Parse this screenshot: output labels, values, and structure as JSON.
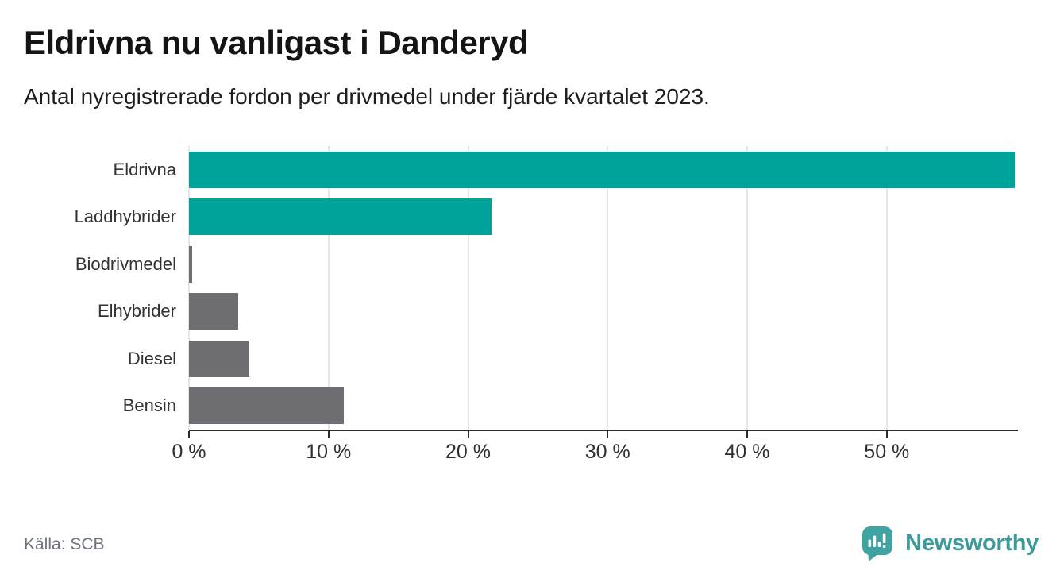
{
  "header": {
    "title": "Eldrivna nu vanligast i Danderyd",
    "subtitle": "Antal nyregistrerade fordon per drivmedel under fjärde kvartalet 2023."
  },
  "chart_data": {
    "type": "bar",
    "orientation": "horizontal",
    "title": "Eldrivna nu vanligast i Danderyd",
    "subtitle": "Antal nyregistrerade fordon per drivmedel under fjärde kvartalet 2023.",
    "unit": "%",
    "categories": [
      "Eldrivna",
      "Laddhybrider",
      "Biodrivmedel",
      "Elhybrider",
      "Diesel",
      "Bensin"
    ],
    "values": [
      59.2,
      21.7,
      0.2,
      3.5,
      4.3,
      11.1
    ],
    "bar_colors": [
      "#00a39a",
      "#00a39a",
      "#6d6d72",
      "#6d6d72",
      "#6d6d72",
      "#6d6d72"
    ],
    "xlabel": "",
    "ylabel": "",
    "xlim": [
      0,
      59.4
    ],
    "x_ticks": [
      {
        "value": 0,
        "label": "0 %"
      },
      {
        "value": 10,
        "label": "10 %"
      },
      {
        "value": 20,
        "label": "20 %"
      },
      {
        "value": 30,
        "label": "30 %"
      },
      {
        "value": 40,
        "label": "40 %"
      },
      {
        "value": 50,
        "label": "50 %"
      }
    ],
    "grid": true,
    "legend": false
  },
  "footer": {
    "source": "Källa: SCB",
    "brand": "Newsworthy"
  },
  "colors": {
    "highlight_teal": "#00a39a",
    "bar_gray": "#6d6d72",
    "grid": "#e6e6e6",
    "axis": "#2b2b2b",
    "logo_teal": "#3d9a9c",
    "logo_badge": "#3fa3a2",
    "source_text": "#6e7380"
  }
}
